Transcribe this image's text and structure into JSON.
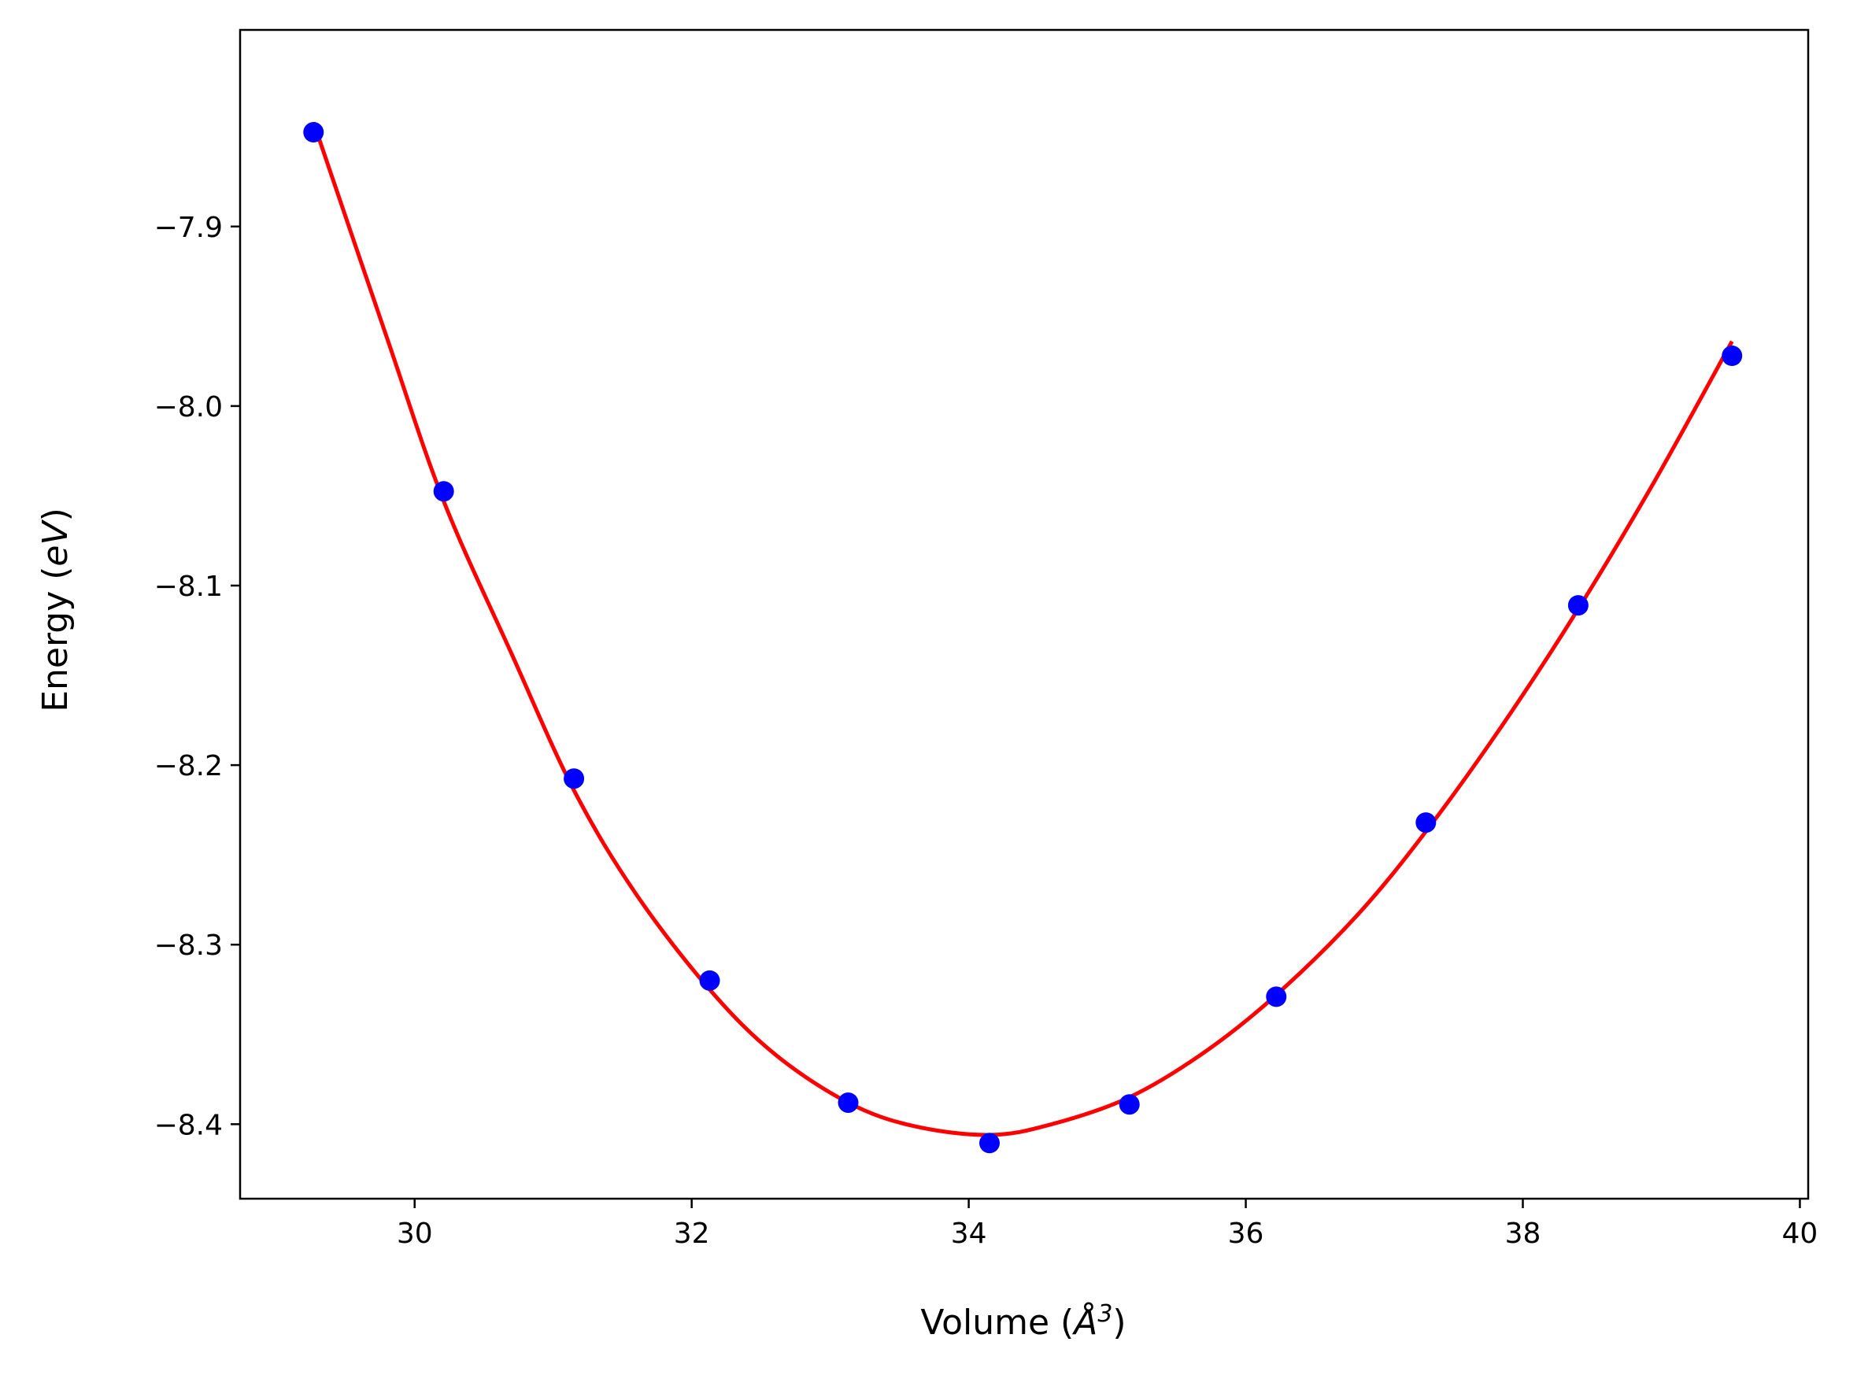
{
  "chart_data": {
    "type": "scatter",
    "xlabel": {
      "prefix": "Volume (",
      "symbol": "Å",
      "sup": "3",
      "suffix": ")"
    },
    "ylabel": {
      "prefix": "Energy (",
      "unit": "eV",
      "suffix": ")"
    },
    "xlim": [
      28.74,
      40.06
    ],
    "ylim": [
      -8.4415,
      -7.7905
    ],
    "xticks": [
      30,
      32,
      34,
      36,
      38,
      40
    ],
    "xtick_labels": [
      "30",
      "32",
      "34",
      "36",
      "38",
      "40"
    ],
    "yticks": [
      -7.9,
      -8.0,
      -8.1,
      -8.2,
      -8.3,
      -8.4
    ],
    "ytick_labels": [
      "−7.9",
      "−8.0",
      "−8.1",
      "−8.2",
      "−8.3",
      "−8.4"
    ],
    "grid": false,
    "series": [
      {
        "kind": "points",
        "color": "#0000ff",
        "x": [
          29.27,
          30.21,
          31.15,
          32.13,
          33.13,
          34.15,
          35.16,
          36.22,
          37.3,
          38.4,
          39.51
        ],
        "y": [
          -7.8475,
          -8.0475,
          -8.2075,
          -8.32,
          -8.388,
          -8.4105,
          -8.389,
          -8.329,
          -8.232,
          -8.111,
          -7.972
        ]
      },
      {
        "kind": "fit-curve",
        "color": "#ff0000",
        "x": [
          29.27,
          29.8,
          30.21,
          30.7,
          31.15,
          31.6,
          32.13,
          32.6,
          33.13,
          33.6,
          34.15,
          34.6,
          35.16,
          35.7,
          36.22,
          36.8,
          37.3,
          37.85,
          38.4,
          38.95,
          39.51
        ],
        "y": [
          -7.842,
          -7.962,
          -8.053,
          -8.138,
          -8.214,
          -8.272,
          -8.325,
          -8.361,
          -8.388,
          -8.401,
          -8.406,
          -8.4,
          -8.385,
          -8.36,
          -8.328,
          -8.284,
          -8.237,
          -8.178,
          -8.113,
          -8.042,
          -7.964
        ]
      }
    ]
  }
}
